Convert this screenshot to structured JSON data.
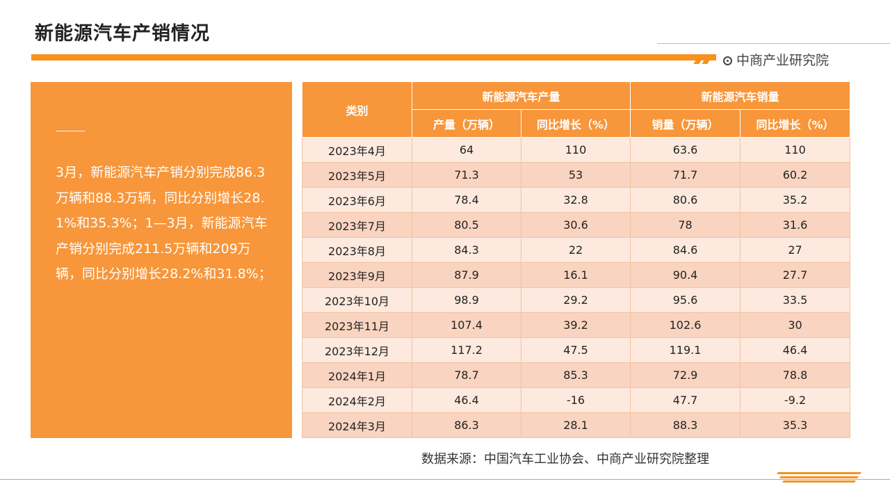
{
  "title": "新能源汽车产销情况",
  "brand": "中商产业研究院",
  "panel_text": "3月，新能源汽车产销分别完成86.3万辆和88.3万辆，同比分别增长28.1%和35.3%；1—3月，新能源汽车产销分别完成211.5万辆和209万辆，同比分别增长28.2%和31.8%；",
  "table": {
    "category_header": "类别",
    "group_production": "新能源汽车产量",
    "group_sales": "新能源汽车销量",
    "col_production": "产量（万辆）",
    "col_prod_growth": "同比增长（%）",
    "col_sales": "销量（万辆）",
    "col_sales_growth": "同比增长（%）",
    "rows": [
      {
        "month": "2023年4月",
        "production": "64",
        "prod_growth": "110",
        "sales": "63.6",
        "sales_growth": "110"
      },
      {
        "month": "2023年5月",
        "production": "71.3",
        "prod_growth": "53",
        "sales": "71.7",
        "sales_growth": "60.2"
      },
      {
        "month": "2023年6月",
        "production": "78.4",
        "prod_growth": "32.8",
        "sales": "80.6",
        "sales_growth": "35.2"
      },
      {
        "month": "2023年7月",
        "production": "80.5",
        "prod_growth": "30.6",
        "sales": "78",
        "sales_growth": "31.6"
      },
      {
        "month": "2023年8月",
        "production": "84.3",
        "prod_growth": "22",
        "sales": "84.6",
        "sales_growth": "27"
      },
      {
        "month": "2023年9月",
        "production": "87.9",
        "prod_growth": "16.1",
        "sales": "90.4",
        "sales_growth": "27.7"
      },
      {
        "month": "2023年10月",
        "production": "98.9",
        "prod_growth": "29.2",
        "sales": "95.6",
        "sales_growth": "33.5"
      },
      {
        "month": "2023年11月",
        "production": "107.4",
        "prod_growth": "39.2",
        "sales": "102.6",
        "sales_growth": "30"
      },
      {
        "month": "2023年12月",
        "production": "117.2",
        "prod_growth": "47.5",
        "sales": "119.1",
        "sales_growth": "46.4"
      },
      {
        "month": "2024年1月",
        "production": "78.7",
        "prod_growth": "85.3",
        "sales": "72.9",
        "sales_growth": "78.8"
      },
      {
        "month": "2024年2月",
        "production": "46.4",
        "prod_growth": "-16",
        "sales": "47.7",
        "sales_growth": "-9.2"
      },
      {
        "month": "2024年3月",
        "production": "86.3",
        "prod_growth": "28.1",
        "sales": "88.3",
        "sales_growth": "35.3"
      }
    ]
  },
  "source": "数据来源：中国汽车工业协会、中商产业研究院整理",
  "colors": {
    "accent": "#f7963a",
    "row_light": "#fde9de",
    "row_dark": "#f9d4c0"
  }
}
